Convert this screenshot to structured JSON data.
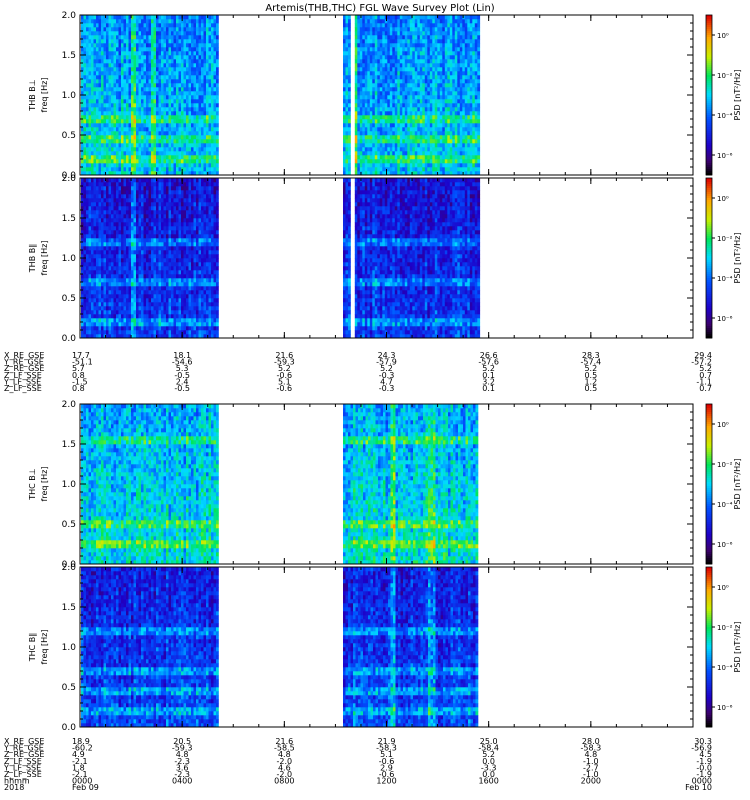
{
  "title": "Artemis(THB,THC) FGL Wave Survey Plot (Lin)",
  "colorbar_label": "PSD [nT²/Hz]",
  "colorbar_ticks": [
    "10⁰",
    "10⁻²",
    "10⁻⁴",
    "10⁻⁶"
  ],
  "colorbar_tick_values": [
    0,
    -2,
    -4,
    -6
  ],
  "colorbar_range": [
    -7,
    1
  ],
  "chart_data": [
    {
      "type": "heatmap",
      "panel": "thb-bperp",
      "ylabel_top": "THB B⊥",
      "ylabel": "freq [Hz]",
      "ylim": [
        0,
        2
      ],
      "yticks": [
        "0.0",
        "0.5",
        "1.0",
        "1.5",
        "2.0"
      ],
      "ytick_values": [
        0,
        0.5,
        1,
        1.5,
        2
      ],
      "data_intervals_frac": [
        [
          0,
          0.29
        ],
        [
          0.555,
          0.57
        ],
        [
          0.58,
          0.84
        ]
      ],
      "bright_columns_frac": [
        0.11,
        0.15,
        0.575
      ],
      "bright_rows_hz": [
        0.2,
        0.45,
        0.7
      ],
      "base_log_psd": -3.5
    },
    {
      "type": "heatmap",
      "panel": "thb-bpar",
      "ylabel_top": "THB B∥",
      "ylabel": "freq [Hz]",
      "ylim": [
        0,
        2
      ],
      "yticks": [
        "0.0",
        "0.5",
        "1.0",
        "1.5",
        "2.0"
      ],
      "ytick_values": [
        0,
        0.5,
        1,
        1.5,
        2
      ],
      "data_intervals_frac": [
        [
          0,
          0.29
        ],
        [
          0.555,
          0.57
        ],
        [
          0.58,
          0.84
        ]
      ],
      "bright_columns_frac": [
        0.11
      ],
      "bright_rows_hz": [
        0.2,
        0.7,
        1.2
      ],
      "base_log_psd": -5.0
    },
    {
      "type": "heatmap",
      "panel": "thc-bperp",
      "ylabel_top": "THC B⊥",
      "ylabel": "freq [Hz]",
      "ylim": [
        0,
        2
      ],
      "yticks": [
        "0.0",
        "0.5",
        "1.0",
        "1.5",
        "2.0"
      ],
      "ytick_values": [
        0,
        0.5,
        1,
        1.5,
        2
      ],
      "data_intervals_frac": [
        [
          0,
          0.29
        ],
        [
          0.555,
          0.84
        ]
      ],
      "bright_columns_frac": [
        0.66,
        0.74
      ],
      "bright_rows_hz": [
        0.25,
        0.5,
        1.55
      ],
      "base_log_psd": -3.2
    },
    {
      "type": "heatmap",
      "panel": "thc-bpar",
      "ylabel_top": "THC B∥",
      "ylabel": "freq [Hz]",
      "ylim": [
        0,
        2
      ],
      "yticks": [
        "0.0",
        "0.5",
        "1.0",
        "1.5",
        "2.0"
      ],
      "ytick_values": [
        0,
        0.5,
        1,
        1.5,
        2
      ],
      "data_intervals_frac": [
        [
          0,
          0.29
        ],
        [
          0.555,
          0.84
        ]
      ],
      "bright_columns_frac": [
        0.66,
        0.74
      ],
      "bright_rows_hz": [
        0.2,
        0.45,
        0.7,
        1.2
      ],
      "base_log_psd": -4.8
    }
  ],
  "ephemeris_thb": {
    "labels": [
      "X_RE_GSE",
      "Y_RE_GSE",
      "Z_RE_GSE",
      "Z_LF_SSE",
      "Y_LF_SSE",
      "Z_LF_SSE"
    ],
    "columns": [
      [
        "17.7",
        "-51.1",
        "5.7",
        "0.8",
        "-1.5",
        "0.8"
      ],
      [
        "18.1",
        "-54.6",
        "5.3",
        "-0.5",
        "2.4",
        "-0.5"
      ],
      [
        "21.6",
        "-59.3",
        "5.2",
        "-0.6",
        "5.1",
        "-0.6"
      ],
      [
        "24.3",
        "-57.9",
        "5.2",
        "-0.3",
        "4.7",
        "-0.3"
      ],
      [
        "26.6",
        "-57.6",
        "5.2",
        "0.1",
        "3.2",
        "0.1"
      ],
      [
        "28.3",
        "-57.4",
        "5.2",
        "0.5",
        "1.2",
        "0.5"
      ],
      [
        "29.4",
        "-57.2",
        "5.2",
        "0.7",
        "-1.1",
        "0.7"
      ]
    ]
  },
  "ephemeris_thc": {
    "labels": [
      "X_RE_GSE",
      "Y_RE_GSE",
      "Z_RE_GSE",
      "Z_LF_SSE",
      "Y_LF_SSE",
      "Z_LF_SSE",
      "hhmm",
      "2018"
    ],
    "columns": [
      [
        "18.9",
        "-60.2",
        "4.9",
        "-2.1",
        "1.8",
        "-2.1",
        "0000",
        "Feb 09"
      ],
      [
        "20.5",
        "-59.3",
        "4.8",
        "-2.3",
        "3.6",
        "-2.3",
        "0400",
        ""
      ],
      [
        "21.6",
        "-58.5",
        "4.8",
        "-2.0",
        "4.6",
        "-2.0",
        "0800",
        ""
      ],
      [
        "21.9",
        "-58.3",
        "5.1",
        "-0.6",
        "2.9",
        "-0.6",
        "1200",
        ""
      ],
      [
        "25.0",
        "-58.4",
        "5.2",
        "0.0",
        "-3.3",
        "0.0",
        "1600",
        ""
      ],
      [
        "28.0",
        "-58.3",
        "4.8",
        "-1.0",
        "-2.7",
        "-1.0",
        "2000",
        ""
      ],
      [
        "30.3",
        "-56.9",
        "4.5",
        "-1.9",
        "-0.0",
        "-1.9",
        "0000",
        "Feb 10"
      ]
    ]
  }
}
